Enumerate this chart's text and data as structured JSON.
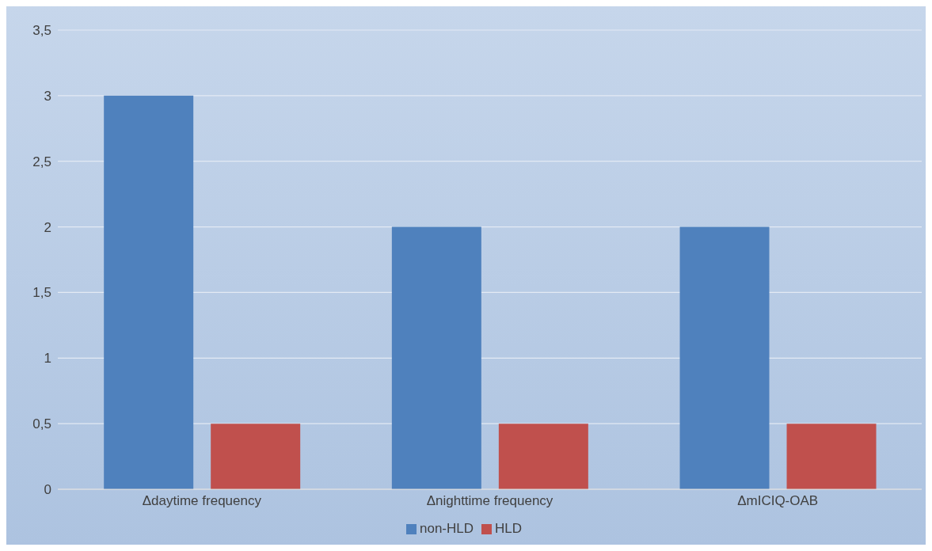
{
  "chart_data": {
    "type": "bar",
    "categories": [
      "Δdaytime frequency",
      "Δnighttime frequency",
      "ΔmICIQ-OAB"
    ],
    "series": [
      {
        "name": "non-HLD",
        "color": "#4f81bd",
        "values": [
          3,
          2,
          2
        ]
      },
      {
        "name": "HLD",
        "color": "#c0504d",
        "values": [
          0.5,
          0.5,
          0.5
        ]
      }
    ],
    "ylim": [
      0,
      3.5
    ],
    "yticks": [
      0,
      {
        "value": 0.5,
        "label": "0,5"
      },
      1,
      {
        "value": 1.5,
        "label": "1,5"
      },
      2,
      {
        "value": 2.5,
        "label": "2,5"
      },
      3,
      {
        "value": 3.5,
        "label": "3,5"
      }
    ],
    "grid": "y",
    "legend": "bottom"
  }
}
